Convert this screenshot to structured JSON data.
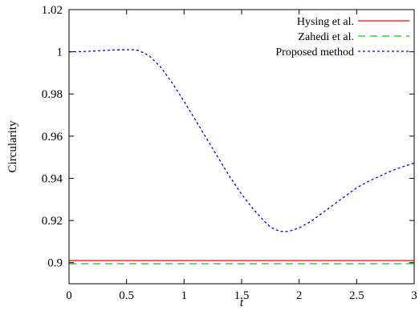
{
  "chart_data": {
    "type": "line",
    "xlabel": "t",
    "ylabel": "Circularity",
    "xlim": [
      0,
      3
    ],
    "ylim": [
      0.89,
      1.02
    ],
    "xticks": [
      "0",
      "0.5",
      "1",
      "1.5",
      "2",
      "2.5",
      "3"
    ],
    "yticks": [
      "0.9",
      "0.92",
      "0.94",
      "0.96",
      "0.98",
      "1",
      "1.02"
    ],
    "grid": false,
    "legend": "top-right",
    "series": [
      {
        "name": "Hysing et al.",
        "color": "#ff0000",
        "style": "solid",
        "x": [
          0,
          3
        ],
        "y": [
          0.901,
          0.901
        ]
      },
      {
        "name": "Zahedi et al.",
        "color": "#00cc00",
        "style": "dashed",
        "x": [
          0,
          3
        ],
        "y": [
          0.8995,
          0.8995
        ]
      },
      {
        "name": "Proposed method",
        "color": "#0000ff",
        "style": "dotted",
        "x": [
          0,
          0.1,
          0.2,
          0.3,
          0.4,
          0.5,
          0.55,
          0.6,
          0.65,
          0.7,
          0.8,
          0.9,
          1.0,
          1.1,
          1.2,
          1.3,
          1.4,
          1.5,
          1.6,
          1.7,
          1.75,
          1.8,
          1.85,
          1.9,
          1.95,
          2.0,
          2.1,
          2.2,
          2.3,
          2.4,
          2.5,
          2.6,
          2.7,
          2.8,
          2.9,
          3.0
        ],
        "y": [
          1.0,
          1.0001,
          1.0003,
          1.0006,
          1.0009,
          1.001,
          1.001,
          1.0007,
          0.9995,
          0.998,
          0.9925,
          0.985,
          0.9765,
          0.9675,
          0.9585,
          0.9495,
          0.9405,
          0.9325,
          0.9255,
          0.9195,
          0.917,
          0.9155,
          0.9148,
          0.9148,
          0.9155,
          0.9165,
          0.9195,
          0.9235,
          0.9275,
          0.9315,
          0.9355,
          0.9385,
          0.941,
          0.9435,
          0.9455,
          0.9472
        ]
      }
    ]
  }
}
